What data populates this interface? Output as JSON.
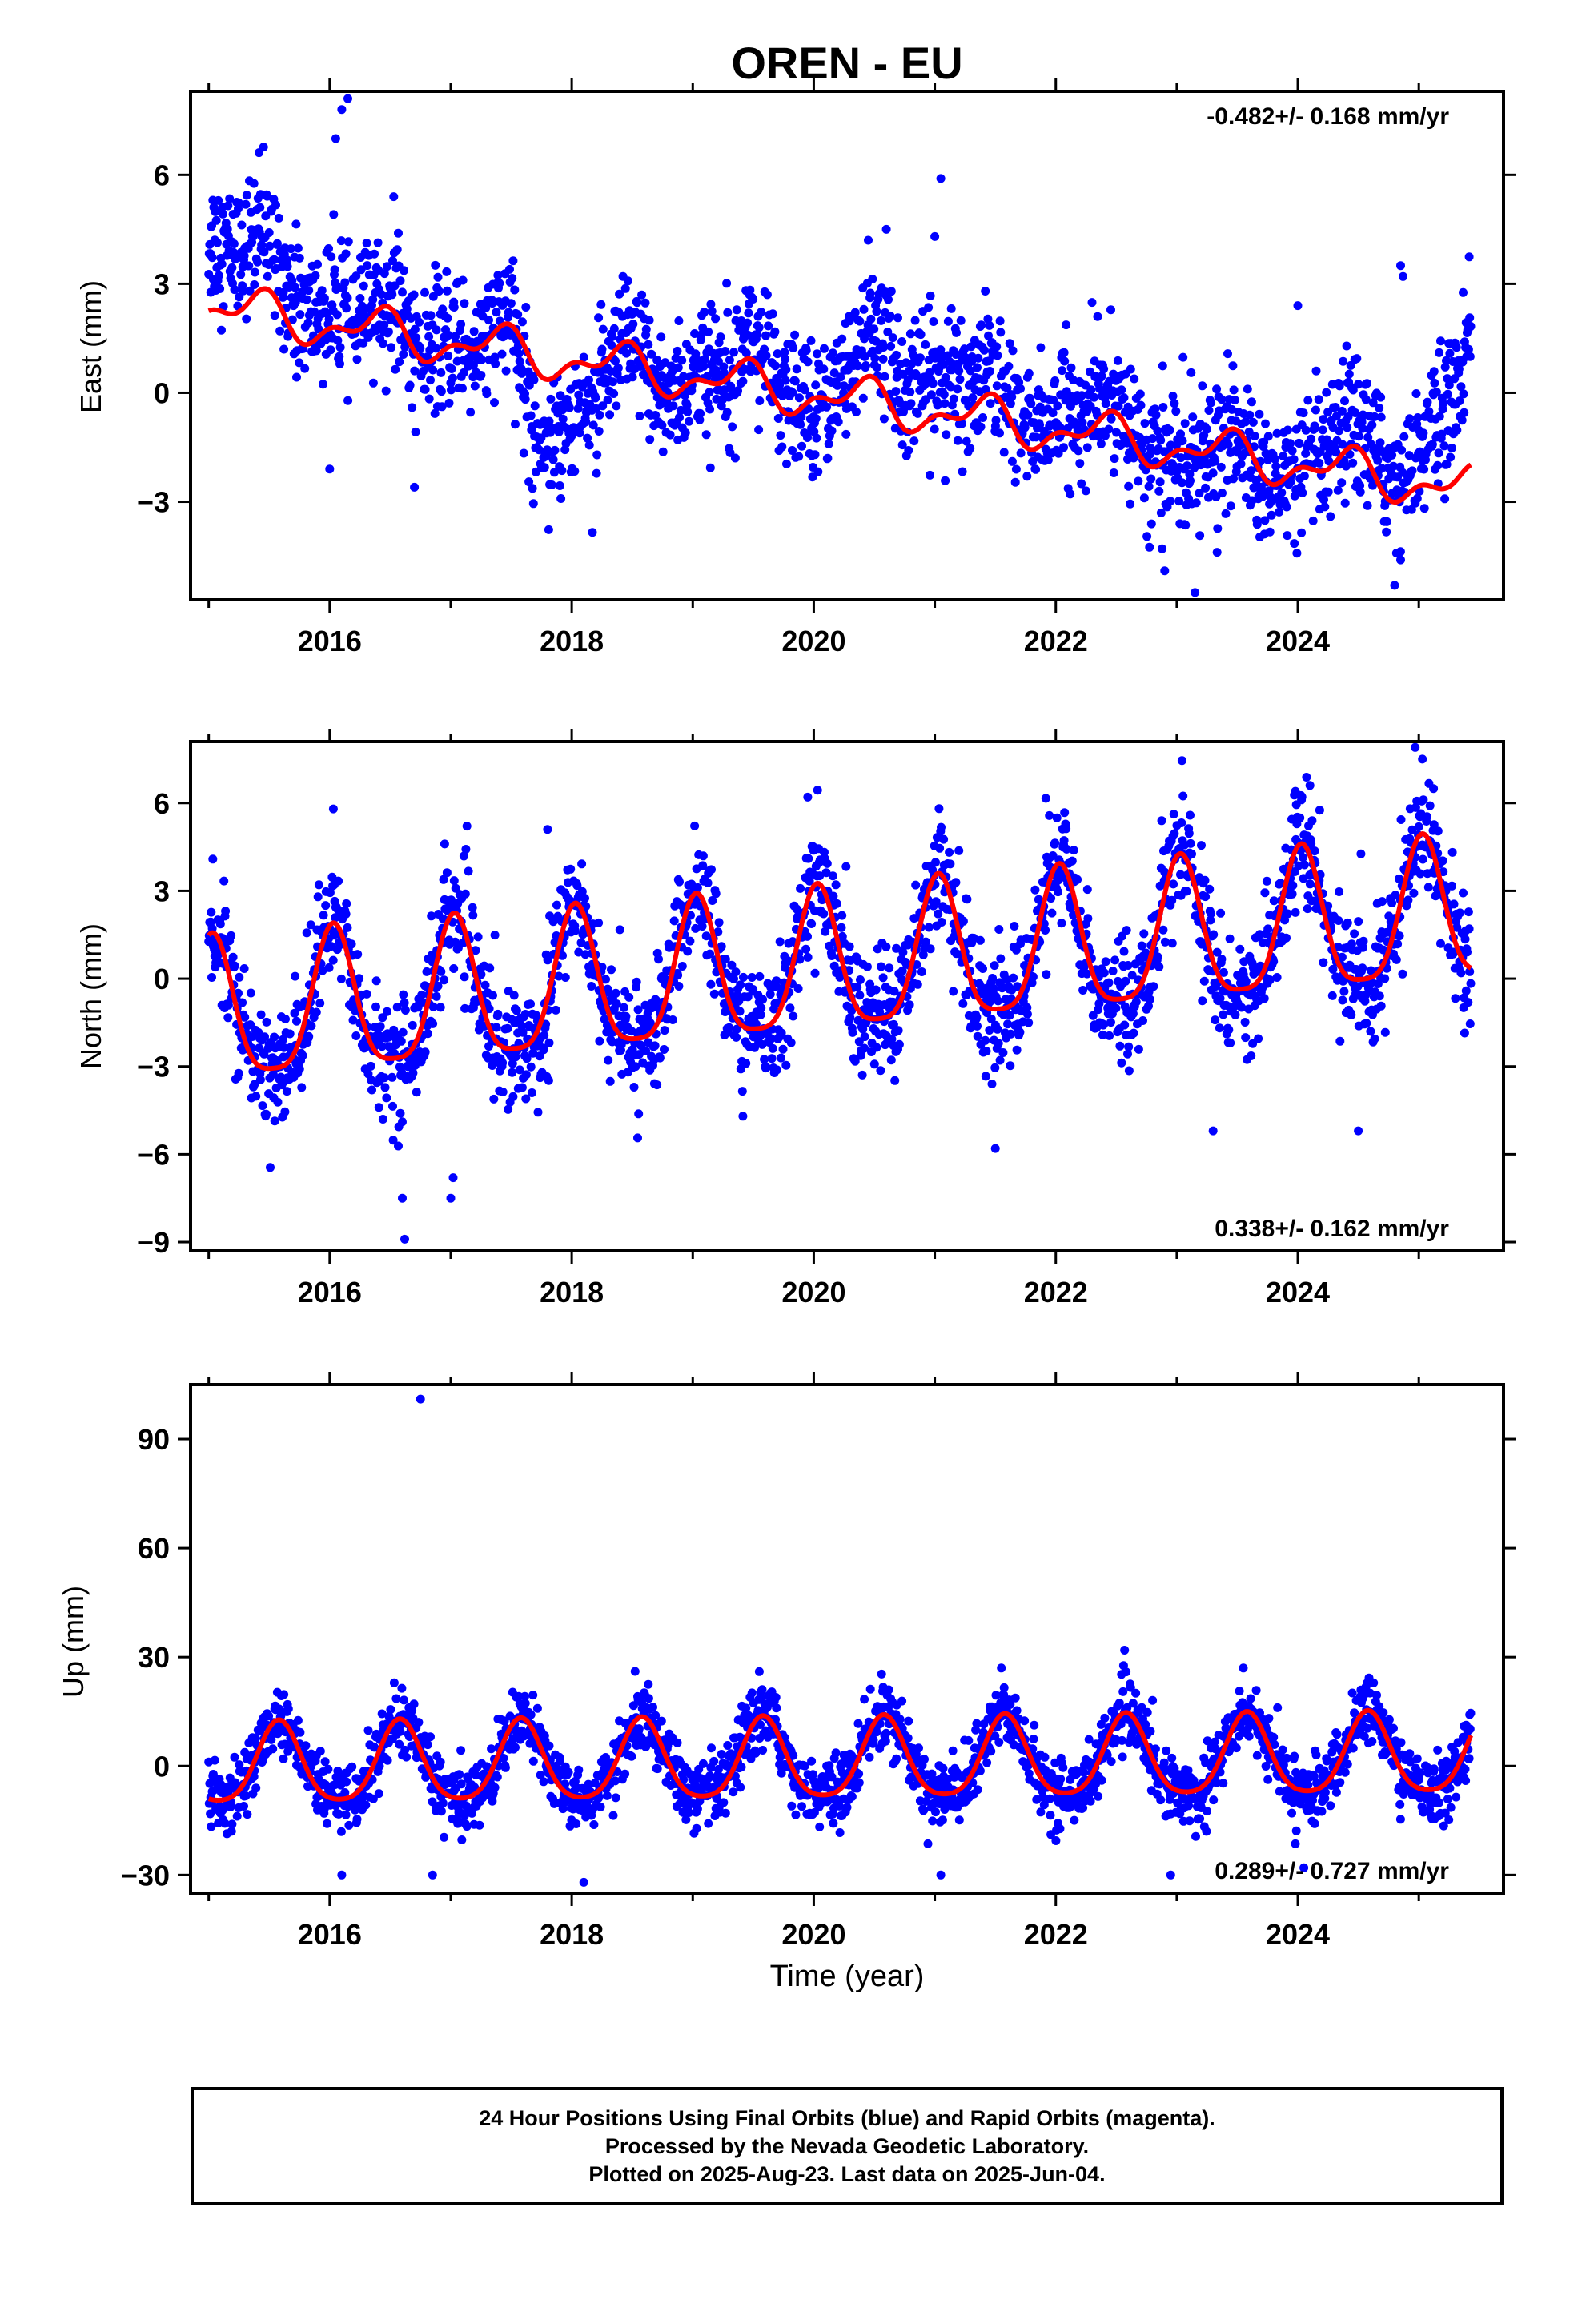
{
  "title": "OREN - EU",
  "xlabel": "Time (year)",
  "x_ticks": [
    "2016",
    "2018",
    "2020",
    "2022",
    "2024"
  ],
  "colors": {
    "points": "#0000ff",
    "fit": "#ff0000",
    "axes": "#000000"
  },
  "footer": {
    "line1": "24 Hour Positions Using Final Orbits (blue) and Rapid Orbits (magenta).",
    "line2": "Processed by the Nevada Geodetic Laboratory.",
    "line3": "Plotted on 2025-Aug-23. Last data on 2025-Jun-04."
  },
  "chart_data": [
    {
      "type": "scatter",
      "name": "east",
      "ylabel": "East (mm)",
      "xlim": [
        2014.85,
        2025.7
      ],
      "ylim": [
        -5.7,
        8.3
      ],
      "yticks": [
        -3,
        0,
        3,
        6
      ],
      "rate_text": "-0.482+/- 0.168 mm/yr",
      "rate_position": "top-right",
      "fit": {
        "rate": -0.482,
        "offset_at_2020": -0.05,
        "annual_amp": 0.5,
        "annual_peak": 2020.4,
        "semiannual_amp": 0.3,
        "semiannual_peak": 2020.5
      },
      "anchors": [
        [
          2015.0,
          4.3
        ],
        [
          2015.5,
          3.6
        ],
        [
          2016.0,
          2.3
        ],
        [
          2016.5,
          1.9
        ],
        [
          2017.0,
          1.5
        ],
        [
          2017.5,
          1.2
        ],
        [
          2017.7,
          -0.6
        ],
        [
          2018.0,
          -0.5
        ],
        [
          2018.5,
          0.6
        ],
        [
          2019.0,
          0.5
        ],
        [
          2019.5,
          1.0
        ],
        [
          2020.0,
          -0.2
        ],
        [
          2020.5,
          1.0
        ],
        [
          2021.0,
          0.6
        ],
        [
          2021.5,
          -0.2
        ],
        [
          2022.0,
          -0.5
        ],
        [
          2022.5,
          -0.8
        ],
        [
          2023.0,
          -1.6
        ],
        [
          2023.5,
          -2.0
        ],
        [
          2024.0,
          -2.0
        ],
        [
          2024.5,
          -1.6
        ],
        [
          2025.0,
          -1.6
        ],
        [
          2025.45,
          0.8
        ]
      ],
      "scatter_sd": 0.9,
      "outliers": [
        [
          2016.1,
          7.8
        ],
        [
          2016.15,
          8.1
        ],
        [
          2016.05,
          7.0
        ],
        [
          2021.05,
          5.9
        ],
        [
          2021.0,
          4.3
        ],
        [
          2020.45,
          4.2
        ],
        [
          2020.6,
          4.5
        ],
        [
          2024.85,
          3.5
        ],
        [
          2024.87,
          3.2
        ],
        [
          2024.0,
          2.4
        ],
        [
          2016.0,
          -2.1
        ],
        [
          2016.7,
          -2.6
        ],
        [
          2023.15,
          -5.5
        ],
        [
          2022.9,
          -4.9
        ],
        [
          2024.8,
          -5.3
        ],
        [
          2024.85,
          -4.6
        ]
      ]
    },
    {
      "type": "scatter",
      "name": "north",
      "ylabel": "North (mm)",
      "xlim": [
        2014.85,
        2025.7
      ],
      "ylim": [
        -9.3,
        8.1
      ],
      "yticks": [
        -9,
        -6,
        -3,
        0,
        3,
        6
      ],
      "rate_text": "0.338+/- 0.162 mm/yr",
      "rate_position": "bottom-right",
      "fit": {
        "rate": 0.338,
        "offset_at_2020": 0.3,
        "annual_amp": 2.4,
        "annual_peak": 2020.03,
        "semiannual_amp": 0.55,
        "semiannual_peak": 2020.03
      },
      "anchors": [],
      "scatter_sd": 1.0,
      "outliers": [
        [
          2016.6,
          -7.5
        ],
        [
          2016.62,
          -8.9
        ],
        [
          2017.0,
          -7.5
        ],
        [
          2017.02,
          -6.8
        ],
        [
          2016.95,
          4.6
        ],
        [
          2016.03,
          5.8
        ],
        [
          2019.95,
          6.2
        ],
        [
          2023.98,
          6.4
        ],
        [
          2024.1,
          6.6
        ],
        [
          2024.97,
          7.9
        ],
        [
          2025.03,
          7.5
        ],
        [
          2023.3,
          -5.2
        ],
        [
          2024.5,
          -5.2
        ],
        [
          2021.5,
          -5.8
        ],
        [
          2017.8,
          5.1
        ]
      ]
    },
    {
      "type": "scatter",
      "name": "up",
      "ylabel": "Up (mm)",
      "xlim": [
        2014.85,
        2025.7
      ],
      "ylim": [
        -35,
        105
      ],
      "yticks": [
        -30,
        0,
        30,
        60,
        90
      ],
      "rate_text": "0.289+/- 0.727 mm/yr",
      "rate_position": "bottom-right",
      "fit": {
        "rate": 0.289,
        "offset_at_2020": 1.0,
        "annual_amp": 11.0,
        "annual_peak": 2020.58,
        "semiannual_amp": 2.0,
        "semiannual_peak": 2020.58
      },
      "anchors": [],
      "scatter_sd": 4.5,
      "outliers": [
        [
          2016.75,
          101.0
        ],
        [
          2016.1,
          -30.0
        ],
        [
          2016.85,
          -30.0
        ],
        [
          2018.1,
          -32.0
        ],
        [
          2022.95,
          -30.0
        ],
        [
          2021.05,
          -30.0
        ],
        [
          2024.05,
          -28.0
        ],
        [
          2019.55,
          26.0
        ],
        [
          2023.55,
          27.0
        ],
        [
          2021.55,
          27.0
        ]
      ]
    }
  ]
}
